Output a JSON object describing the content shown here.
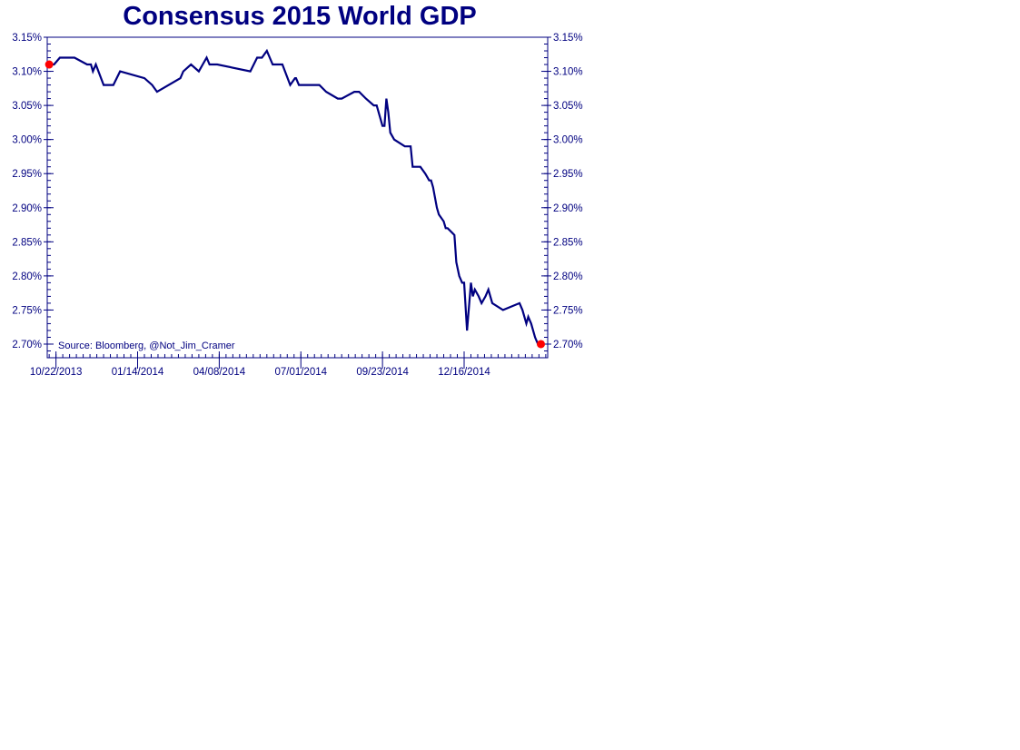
{
  "chart_data": {
    "type": "line",
    "title": "Consensus 2015 World GDP",
    "xlabel": "",
    "ylabel": "",
    "annotation": "Source: Bloomberg, @Not_Jim_Cramer",
    "x_tick_labels": [
      "10/22/2013",
      "01/14/2014",
      "04/08/2014",
      "07/01/2014",
      "09/23/2014",
      "12/16/2014"
    ],
    "xlim": [
      "2013-10-13",
      "2015-03-12"
    ],
    "ylim": [
      2.68,
      3.15
    ],
    "y_ticks": [
      2.7,
      2.75,
      2.8,
      2.85,
      2.9,
      2.95,
      3.0,
      3.05,
      3.1,
      3.15
    ],
    "y_tick_format": "%",
    "y_axis_sides": [
      "left",
      "right"
    ],
    "grid": false,
    "colors": {
      "line": "#000080",
      "axis": "#000080",
      "endpoint": "#ff0000",
      "title": "#000080"
    },
    "series": [
      {
        "name": "",
        "x": [
          "2013-10-15",
          "2013-10-20",
          "2013-10-26",
          "2013-11-10",
          "2013-11-23",
          "2013-11-27",
          "2013-11-29",
          "2013-12-02",
          "2013-12-10",
          "2013-12-20",
          "2013-12-27",
          "2014-01-21",
          "2014-01-29",
          "2014-02-03",
          "2014-02-27",
          "2014-03-02",
          "2014-03-10",
          "2014-03-18",
          "2014-03-22",
          "2014-03-26",
          "2014-03-29",
          "2014-04-02",
          "2014-04-06",
          "2014-05-10",
          "2014-05-17",
          "2014-05-22",
          "2014-05-27",
          "2014-06-02",
          "2014-06-08",
          "2014-06-12",
          "2014-06-20",
          "2014-06-25",
          "2014-06-26",
          "2014-06-29",
          "2014-07-05",
          "2014-07-10",
          "2014-07-20",
          "2014-07-27",
          "2014-08-08",
          "2014-08-12",
          "2014-08-25",
          "2014-08-30",
          "2014-09-06",
          "2014-09-14",
          "2014-09-17",
          "2014-09-23",
          "2014-09-25",
          "2014-09-27",
          "2014-09-29",
          "2014-10-01",
          "2014-10-05",
          "2014-10-16",
          "2014-10-22",
          "2014-10-24",
          "2014-11-01",
          "2014-11-06",
          "2014-11-10",
          "2014-11-12",
          "2014-11-14",
          "2014-11-18",
          "2014-11-20",
          "2014-11-25",
          "2014-11-27",
          "2014-11-29",
          "2014-12-06",
          "2014-12-08",
          "2014-12-11",
          "2014-12-14",
          "2014-12-16",
          "2014-12-19",
          "2014-12-23",
          "2014-12-25",
          "2014-12-27",
          "2014-12-31",
          "2015-01-03",
          "2015-01-07",
          "2015-01-10",
          "2015-01-14",
          "2015-01-25",
          "2015-02-11",
          "2015-02-14",
          "2015-02-18",
          "2015-02-20",
          "2015-02-23",
          "2015-02-27",
          "2015-03-02",
          "2015-03-05"
        ],
        "values": [
          3.11,
          3.11,
          3.12,
          3.12,
          3.11,
          3.11,
          3.1,
          3.11,
          3.08,
          3.08,
          3.1,
          3.09,
          3.08,
          3.07,
          3.09,
          3.1,
          3.11,
          3.1,
          3.11,
          3.12,
          3.11,
          3.11,
          3.11,
          3.1,
          3.12,
          3.12,
          3.13,
          3.11,
          3.11,
          3.11,
          3.08,
          3.09,
          3.09,
          3.08,
          3.08,
          3.08,
          3.08,
          3.07,
          3.06,
          3.06,
          3.07,
          3.07,
          3.06,
          3.05,
          3.05,
          3.02,
          3.02,
          3.06,
          3.04,
          3.01,
          3.0,
          2.99,
          2.99,
          2.96,
          2.96,
          2.95,
          2.94,
          2.94,
          2.93,
          2.9,
          2.89,
          2.88,
          2.87,
          2.87,
          2.86,
          2.82,
          2.8,
          2.79,
          2.79,
          2.72,
          2.79,
          2.77,
          2.78,
          2.77,
          2.76,
          2.77,
          2.78,
          2.76,
          2.75,
          2.76,
          2.75,
          2.73,
          2.74,
          2.73,
          2.71,
          2.7,
          2.7
        ],
        "endpoints_marked": true
      }
    ]
  }
}
